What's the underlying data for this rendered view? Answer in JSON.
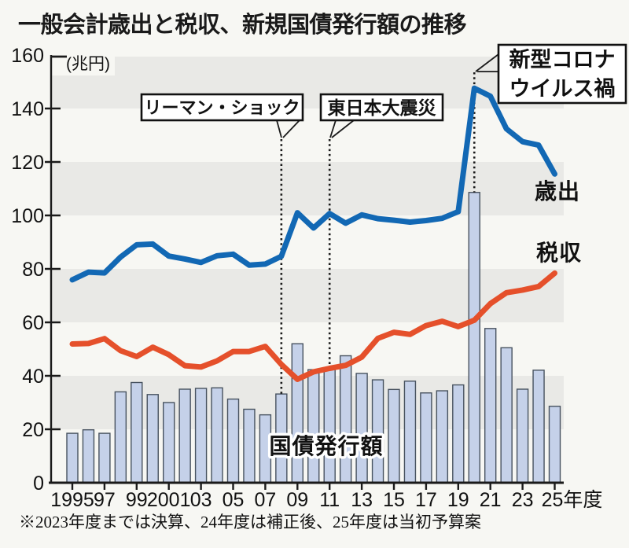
{
  "page": {
    "title": "一般会計歳出と税収、新規国債発行額の推移",
    "footnote": "※2023年度までは決算、24年度は補正後、25年度は当初予算案"
  },
  "colors": {
    "background": "#f7f7f3",
    "band": "#e9e9e6",
    "axis": "#1a1a1a",
    "text": "#111111",
    "expenditure_line": "#1268b4",
    "tax_line": "#e5502b",
    "bond_bar_fill": "#c5d1e9",
    "bond_bar_border": "#47525f",
    "annotation_box_bg": "#ffffff",
    "annotation_box_border": "#111111"
  },
  "chart_data": {
    "type": "combo-bar-line",
    "title": "一般会計歳出と税収、新規国債発行額の推移",
    "y_unit": "(兆円)",
    "x_start": 1995,
    "x_end": 2025,
    "ylim": [
      0,
      160
    ],
    "y_ticks": [
      0,
      20,
      40,
      60,
      80,
      100,
      120,
      140,
      160
    ],
    "gray_band_ranges": [
      [
        20,
        40
      ],
      [
        60,
        80
      ],
      [
        100,
        120
      ],
      [
        140,
        160
      ]
    ],
    "x_tick_years": [
      1995,
      1997,
      1999,
      2001,
      2003,
      2005,
      2007,
      2009,
      2011,
      2013,
      2015,
      2017,
      2019,
      2021,
      2023,
      2025
    ],
    "x_tick_labels": [
      "1995",
      "97",
      "99",
      "2001",
      "03",
      "05",
      "07",
      "09",
      "11",
      "13",
      "15",
      "17",
      "19",
      "21",
      "23",
      "25年度"
    ],
    "series": [
      {
        "id": "expenditure",
        "name": "歳出",
        "type": "line",
        "color": "#1268b4",
        "values": [
          75.9,
          78.8,
          78.5,
          84.4,
          89.0,
          89.3,
          84.8,
          83.7,
          82.4,
          84.9,
          85.5,
          81.4,
          81.8,
          84.7,
          101.0,
          95.3,
          100.7,
          97.1,
          100.2,
          98.8,
          98.2,
          97.5,
          98.1,
          98.9,
          101.4,
          147.6,
          144.6,
          132.4,
          127.6,
          126.3,
          115.5
        ]
      },
      {
        "id": "tax",
        "name": "税収",
        "type": "line",
        "color": "#e5502b",
        "values": [
          51.9,
          52.1,
          53.9,
          49.4,
          47.2,
          50.7,
          47.9,
          43.8,
          43.3,
          45.6,
          49.1,
          49.1,
          51.0,
          44.3,
          38.7,
          41.5,
          42.8,
          43.9,
          47.0,
          54.0,
          56.3,
          55.5,
          58.8,
          60.4,
          58.4,
          60.8,
          67.0,
          71.1,
          72.1,
          73.4,
          78.4
        ]
      },
      {
        "id": "bonds",
        "name": "国債発行額",
        "type": "bar",
        "fill": "#c5d1e9",
        "border": "#47525f",
        "values": [
          18.5,
          19.8,
          18.5,
          34.0,
          37.5,
          33.0,
          30.0,
          35.0,
          35.3,
          35.5,
          31.3,
          27.5,
          25.4,
          33.2,
          52.0,
          42.3,
          42.8,
          47.5,
          40.9,
          38.5,
          34.9,
          38.0,
          33.6,
          34.4,
          36.6,
          108.6,
          57.7,
          50.5,
          35.0,
          42.1,
          28.6
        ]
      }
    ],
    "annotations": [
      {
        "id": "lehman-shock",
        "lines": [
          "リーマン・ショック"
        ],
        "target_year": 2008
      },
      {
        "id": "tohoku-earthquake",
        "lines": [
          "東日本大震災"
        ],
        "target_year": 2011
      },
      {
        "id": "covid-pandemic",
        "lines": [
          "新型コロナ",
          "ウイルス禍"
        ],
        "target_year": 2020
      }
    ]
  }
}
